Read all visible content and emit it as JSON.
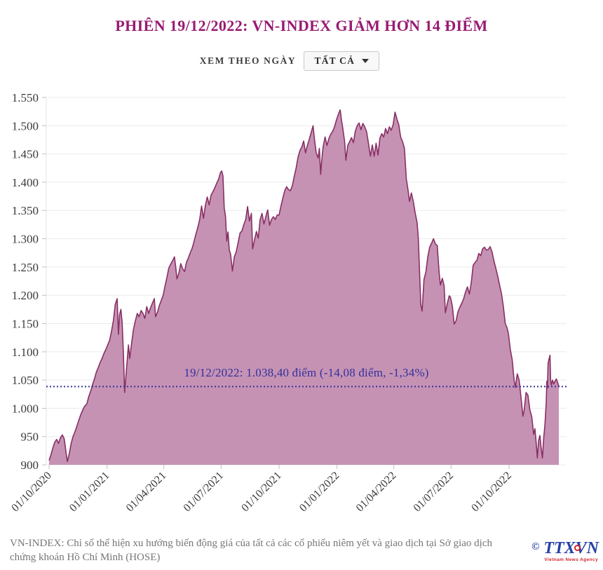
{
  "title": "PHIÊN 19/12/2022: VN-INDEX GIẢM HƠN 14 ĐIỂM",
  "controls": {
    "label": "XEM THEO NGÀY",
    "dropdown_value": "TẤT CẢ"
  },
  "footer": {
    "note": "VN-INDEX: Chỉ số thể hiện xu hướng biến động giá của tất cả các cổ phiếu niêm yết và giao dịch tại Sở giao dịch chứng khoán Hồ Chí Minh (HOSE)"
  },
  "logo": {
    "copyright": "©",
    "wordmark": "TTXVN",
    "caption": "Vietnam News Agency"
  },
  "colors": {
    "title": "#981B72",
    "area_fill": "#C692B4",
    "line": "#873064",
    "reference": "#31319A",
    "grid": "#ECECEC",
    "axis_line": "#E3E3E3",
    "tick": "#BFBFBF",
    "axis_text": "#3B3B3B"
  },
  "chart_data": {
    "type": "area",
    "title": "PHIÊN 19/12/2022: VN-INDEX GIẢM HƠN 14 ĐIỂM",
    "xlabel": "",
    "ylabel": "",
    "x_unit": "days since 01/10/2020",
    "ylim": [
      900,
      1550
    ],
    "grid": "horizontal",
    "legend": "none",
    "y_ticks": [
      {
        "value": 900,
        "label": "900"
      },
      {
        "value": 950,
        "label": "950"
      },
      {
        "value": 1000,
        "label": "1.000"
      },
      {
        "value": 1050,
        "label": "1.050"
      },
      {
        "value": 1100,
        "label": "1.100"
      },
      {
        "value": 1150,
        "label": "1.150"
      },
      {
        "value": 1200,
        "label": "1.200"
      },
      {
        "value": 1250,
        "label": "1.250"
      },
      {
        "value": 1300,
        "label": "1.300"
      },
      {
        "value": 1350,
        "label": "1.350"
      },
      {
        "value": 1400,
        "label": "1.400"
      },
      {
        "value": 1450,
        "label": "1.450"
      },
      {
        "value": 1500,
        "label": "1.500"
      },
      {
        "value": 1550,
        "label": "1.550"
      }
    ],
    "x_ticks": [
      {
        "day": 0,
        "label": "01/10/2020"
      },
      {
        "day": 92,
        "label": "01/01/2021"
      },
      {
        "day": 182,
        "label": "01/04/2021"
      },
      {
        "day": 273,
        "label": "01/07/2021"
      },
      {
        "day": 365,
        "label": "01/10/2021"
      },
      {
        "day": 457,
        "label": "01/01/2022"
      },
      {
        "day": 547,
        "label": "01/04/2022"
      },
      {
        "day": 638,
        "label": "01/07/2022"
      },
      {
        "day": 730,
        "label": "01/10/2022"
      }
    ],
    "reference_line": {
      "value": 1038.4,
      "label": "19/12/2022: 1.038,40 điểm (-14,08 điểm, -1,34%)"
    },
    "series": [
      {
        "name": "VN-INDEX",
        "points": [
          [
            0,
            908
          ],
          [
            3,
            918
          ],
          [
            6,
            930
          ],
          [
            9,
            940
          ],
          [
            12,
            945
          ],
          [
            15,
            938
          ],
          [
            18,
            948
          ],
          [
            21,
            953
          ],
          [
            24,
            946
          ],
          [
            27,
            921
          ],
          [
            29,
            906
          ],
          [
            32,
            920
          ],
          [
            35,
            938
          ],
          [
            38,
            950
          ],
          [
            41,
            958
          ],
          [
            44,
            968
          ],
          [
            47,
            978
          ],
          [
            50,
            988
          ],
          [
            53,
            996
          ],
          [
            56,
            1003
          ],
          [
            60,
            1008
          ],
          [
            63,
            1021
          ],
          [
            66,
            1030
          ],
          [
            69,
            1042
          ],
          [
            72,
            1052
          ],
          [
            75,
            1064
          ],
          [
            78,
            1072
          ],
          [
            81,
            1081
          ],
          [
            84,
            1088
          ],
          [
            87,
            1097
          ],
          [
            90,
            1104
          ],
          [
            93,
            1112
          ],
          [
            96,
            1120
          ],
          [
            99,
            1136
          ],
          [
            102,
            1155
          ],
          [
            105,
            1184
          ],
          [
            108,
            1194
          ],
          [
            110,
            1131
          ],
          [
            112,
            1166
          ],
          [
            114,
            1175
          ],
          [
            116,
            1152
          ],
          [
            118,
            1097
          ],
          [
            120,
            1028
          ],
          [
            122,
            1057
          ],
          [
            124,
            1085
          ],
          [
            126,
            1112
          ],
          [
            128,
            1088
          ],
          [
            131,
            1115
          ],
          [
            134,
            1140
          ],
          [
            137,
            1155
          ],
          [
            140,
            1168
          ],
          [
            143,
            1162
          ],
          [
            146,
            1173
          ],
          [
            149,
            1168
          ],
          [
            152,
            1159
          ],
          [
            155,
            1180
          ],
          [
            158,
            1168
          ],
          [
            161,
            1178
          ],
          [
            164,
            1186
          ],
          [
            167,
            1194
          ],
          [
            169,
            1162
          ],
          [
            172,
            1170
          ],
          [
            175,
            1182
          ],
          [
            178,
            1191
          ],
          [
            181,
            1200
          ],
          [
            184,
            1216
          ],
          [
            187,
            1231
          ],
          [
            190,
            1248
          ],
          [
            193,
            1255
          ],
          [
            196,
            1261
          ],
          [
            199,
            1268
          ],
          [
            201,
            1250
          ],
          [
            203,
            1229
          ],
          [
            206,
            1239
          ],
          [
            209,
            1256
          ],
          [
            212,
            1247
          ],
          [
            215,
            1242
          ],
          [
            218,
            1258
          ],
          [
            221,
            1266
          ],
          [
            224,
            1275
          ],
          [
            227,
            1283
          ],
          [
            230,
            1295
          ],
          [
            233,
            1308
          ],
          [
            236,
            1320
          ],
          [
            239,
            1334
          ],
          [
            242,
            1358
          ],
          [
            245,
            1336
          ],
          [
            248,
            1359
          ],
          [
            251,
            1374
          ],
          [
            254,
            1360
          ],
          [
            257,
            1377
          ],
          [
            260,
            1383
          ],
          [
            263,
            1390
          ],
          [
            266,
            1398
          ],
          [
            269,
            1405
          ],
          [
            272,
            1417
          ],
          [
            274,
            1420
          ],
          [
            276,
            1411
          ],
          [
            278,
            1354
          ],
          [
            280,
            1340
          ],
          [
            282,
            1296
          ],
          [
            284,
            1312
          ],
          [
            286,
            1280
          ],
          [
            288,
            1273
          ],
          [
            291,
            1243
          ],
          [
            294,
            1268
          ],
          [
            297,
            1277
          ],
          [
            300,
            1293
          ],
          [
            303,
            1310
          ],
          [
            306,
            1314
          ],
          [
            309,
            1325
          ],
          [
            312,
            1334
          ],
          [
            315,
            1357
          ],
          [
            318,
            1331
          ],
          [
            321,
            1345
          ],
          [
            323,
            1282
          ],
          [
            326,
            1298
          ],
          [
            329,
            1313
          ],
          [
            332,
            1301
          ],
          [
            335,
            1334
          ],
          [
            338,
            1345
          ],
          [
            341,
            1326
          ],
          [
            344,
            1339
          ],
          [
            347,
            1351
          ],
          [
            350,
            1324
          ],
          [
            353,
            1334
          ],
          [
            356,
            1339
          ],
          [
            359,
            1334
          ],
          [
            362,
            1342
          ],
          [
            365,
            1342
          ],
          [
            368,
            1358
          ],
          [
            371,
            1372
          ],
          [
            374,
            1385
          ],
          [
            377,
            1392
          ],
          [
            380,
            1387
          ],
          [
            383,
            1385
          ],
          [
            386,
            1394
          ],
          [
            389,
            1410
          ],
          [
            392,
            1425
          ],
          [
            395,
            1444
          ],
          [
            398,
            1456
          ],
          [
            401,
            1462
          ],
          [
            404,
            1473
          ],
          [
            407,
            1452
          ],
          [
            410,
            1465
          ],
          [
            413,
            1476
          ],
          [
            416,
            1488
          ],
          [
            419,
            1500
          ],
          [
            421,
            1478
          ],
          [
            424,
            1452
          ],
          [
            427,
            1443
          ],
          [
            429,
            1460
          ],
          [
            431,
            1414
          ],
          [
            433,
            1442
          ],
          [
            435,
            1463
          ],
          [
            438,
            1480
          ],
          [
            441,
            1465
          ],
          [
            444,
            1477
          ],
          [
            447,
            1485
          ],
          [
            450,
            1490
          ],
          [
            453,
            1498
          ],
          [
            456,
            1510
          ],
          [
            459,
            1520
          ],
          [
            462,
            1528
          ],
          [
            464,
            1510
          ],
          [
            466,
            1496
          ],
          [
            469,
            1472
          ],
          [
            471,
            1439
          ],
          [
            474,
            1465
          ],
          [
            477,
            1472
          ],
          [
            480,
            1479
          ],
          [
            483,
            1470
          ],
          [
            486,
            1490
          ],
          [
            489,
            1500
          ],
          [
            492,
            1505
          ],
          [
            495,
            1493
          ],
          [
            498,
            1504
          ],
          [
            501,
            1498
          ],
          [
            504,
            1489
          ],
          [
            507,
            1468
          ],
          [
            510,
            1446
          ],
          [
            513,
            1466
          ],
          [
            516,
            1446
          ],
          [
            519,
            1469
          ],
          [
            522,
            1448
          ],
          [
            525,
            1478
          ],
          [
            528,
            1486
          ],
          [
            531,
            1480
          ],
          [
            534,
            1495
          ],
          [
            537,
            1486
          ],
          [
            540,
            1498
          ],
          [
            543,
            1492
          ],
          [
            546,
            1502
          ],
          [
            549,
            1524
          ],
          [
            552,
            1512
          ],
          [
            555,
            1502
          ],
          [
            558,
            1480
          ],
          [
            561,
            1472
          ],
          [
            564,
            1460
          ],
          [
            567,
            1406
          ],
          [
            570,
            1384
          ],
          [
            572,
            1366
          ],
          [
            575,
            1381
          ],
          [
            578,
            1366
          ],
          [
            581,
            1346
          ],
          [
            584,
            1329
          ],
          [
            586,
            1301
          ],
          [
            588,
            1240
          ],
          [
            590,
            1183
          ],
          [
            592,
            1172
          ],
          [
            595,
            1228
          ],
          [
            598,
            1241
          ],
          [
            601,
            1268
          ],
          [
            604,
            1285
          ],
          [
            607,
            1292
          ],
          [
            610,
            1300
          ],
          [
            613,
            1291
          ],
          [
            616,
            1288
          ],
          [
            619,
            1240
          ],
          [
            621,
            1218
          ],
          [
            624,
            1230
          ],
          [
            627,
            1217
          ],
          [
            629,
            1169
          ],
          [
            632,
            1185
          ],
          [
            635,
            1199
          ],
          [
            637,
            1197
          ],
          [
            640,
            1181
          ],
          [
            643,
            1149
          ],
          [
            646,
            1155
          ],
          [
            649,
            1171
          ],
          [
            652,
            1179
          ],
          [
            655,
            1186
          ],
          [
            658,
            1194
          ],
          [
            661,
            1206
          ],
          [
            664,
            1215
          ],
          [
            667,
            1202
          ],
          [
            670,
            1222
          ],
          [
            673,
            1253
          ],
          [
            676,
            1258
          ],
          [
            679,
            1262
          ],
          [
            682,
            1274
          ],
          [
            685,
            1270
          ],
          [
            688,
            1282
          ],
          [
            691,
            1285
          ],
          [
            694,
            1280
          ],
          [
            697,
            1281
          ],
          [
            700,
            1286
          ],
          [
            703,
            1277
          ],
          [
            706,
            1261
          ],
          [
            709,
            1248
          ],
          [
            712,
            1234
          ],
          [
            715,
            1218
          ],
          [
            718,
            1203
          ],
          [
            721,
            1180
          ],
          [
            724,
            1150
          ],
          [
            727,
            1142
          ],
          [
            729,
            1132
          ],
          [
            732,
            1104
          ],
          [
            735,
            1086
          ],
          [
            738,
            1050
          ],
          [
            740,
            1037
          ],
          [
            743,
            1061
          ],
          [
            746,
            1050
          ],
          [
            749,
            1019
          ],
          [
            752,
            986
          ],
          [
            754,
            997
          ],
          [
            757,
            1028
          ],
          [
            760,
            1023
          ],
          [
            763,
            997
          ],
          [
            766,
            985
          ],
          [
            769,
            954
          ],
          [
            771,
            964
          ],
          [
            773,
            941
          ],
          [
            775,
            912
          ],
          [
            777,
            943
          ],
          [
            779,
            952
          ],
          [
            781,
            930
          ],
          [
            783,
            912
          ],
          [
            785,
            947
          ],
          [
            787,
            971
          ],
          [
            789,
            1009
          ],
          [
            790,
            1048
          ],
          [
            791,
            1036
          ],
          [
            792,
            1080
          ],
          [
            795,
            1094
          ],
          [
            796,
            1049
          ],
          [
            797,
            1041
          ],
          [
            799,
            1050
          ],
          [
            801,
            1043
          ],
          [
            803,
            1048
          ],
          [
            805,
            1052
          ],
          [
            807,
            1046
          ],
          [
            809,
            1038.4
          ]
        ]
      }
    ]
  }
}
